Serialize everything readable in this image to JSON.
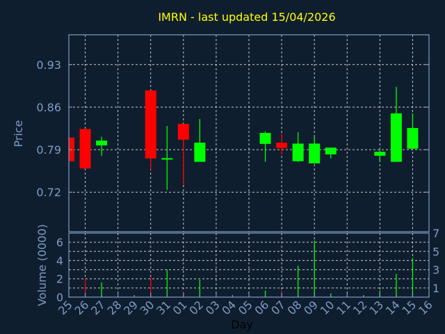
{
  "chart_data": {
    "type": "candlestick",
    "title": "IMRN - last updated 15/04/2026",
    "xlabel": "Day",
    "ylabel": "Price",
    "volume_label": "Volume (0000)",
    "x_ticks": [
      "25",
      "26",
      "27",
      "28",
      "29",
      "30",
      "31",
      "01",
      "02",
      "03",
      "04",
      "05",
      "06",
      "07",
      "08",
      "09",
      "10",
      "11",
      "12",
      "13",
      "14",
      "15",
      "16"
    ],
    "y_ticks": [
      "0.93",
      "0.86",
      "0.79",
      "0.72"
    ],
    "y_tick_values": [
      0.93,
      0.86,
      0.79,
      0.72
    ],
    "ylim": [
      0.655,
      0.979
    ],
    "volume_ticks": [
      "0",
      "1",
      "2",
      "3",
      "4",
      "5",
      "6",
      "7"
    ],
    "volume_ylim": [
      0,
      7
    ],
    "grid": true,
    "colors": {
      "up": "#00ff00",
      "down": "#ff0000",
      "title": "#ffff00",
      "axis": "#7d9cc4",
      "background": "#0f1e2f"
    },
    "candles": [
      {
        "day": "25",
        "open": 0.81,
        "high": 0.81,
        "low": 0.771,
        "close": 0.771,
        "volume": 0
      },
      {
        "day": "26",
        "open": 0.824,
        "high": 0.824,
        "low": 0.759,
        "close": 0.759,
        "volume": 1.98
      },
      {
        "day": "27",
        "open": 0.797,
        "high": 0.811,
        "low": 0.78,
        "close": 0.805,
        "volume": 1.62
      },
      {
        "day": "30",
        "open": 0.8875,
        "high": 0.8875,
        "low": 0.757,
        "close": 0.7755,
        "volume": 2.23
      },
      {
        "day": "31",
        "open": 0.7745,
        "high": 0.829,
        "low": 0.724,
        "close": 0.776,
        "volume": 3.02
      },
      {
        "day": "01",
        "open": 0.8325,
        "high": 0.8325,
        "low": 0.732,
        "close": 0.8065,
        "volume": 0.58
      },
      {
        "day": "02",
        "open": 0.77,
        "high": 0.8405,
        "low": 0.77,
        "close": 0.8015,
        "volume": 1.9
      },
      {
        "day": "06",
        "open": 0.7995,
        "high": 0.82,
        "low": 0.77,
        "close": 0.8175,
        "volume": 0.71
      },
      {
        "day": "07",
        "open": 0.8015,
        "high": 0.8168,
        "low": 0.782,
        "close": 0.7927,
        "volume": 0.69
      },
      {
        "day": "08",
        "open": 0.771,
        "high": 0.8187,
        "low": 0.77,
        "close": 0.8,
        "volume": 3.43
      },
      {
        "day": "09",
        "open": 0.7674,
        "high": 0.8107,
        "low": 0.7674,
        "close": 0.8,
        "volume": 6.19
      },
      {
        "day": "10",
        "open": 0.7823,
        "high": 0.7934,
        "low": 0.7755,
        "close": 0.7934,
        "volume": 0.41
      },
      {
        "day": "13",
        "open": 0.78,
        "high": 0.789,
        "low": 0.77,
        "close": 0.7866,
        "volume": 0.71
      },
      {
        "day": "14",
        "open": 0.77,
        "high": 0.8933,
        "low": 0.77,
        "close": 0.8497,
        "volume": 2.54
      },
      {
        "day": "15",
        "open": 0.7915,
        "high": 0.8497,
        "low": 0.7915,
        "close": 0.8256,
        "volume": 4.29
      }
    ]
  }
}
